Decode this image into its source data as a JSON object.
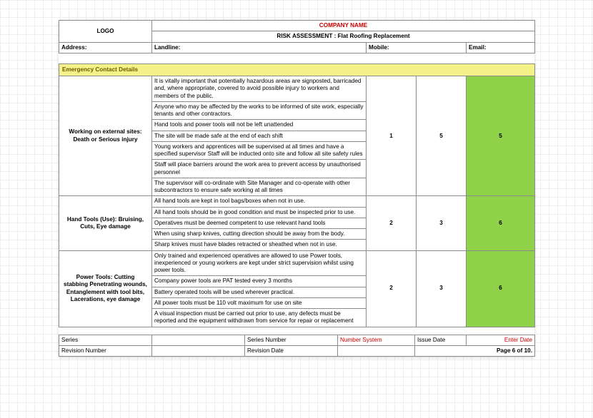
{
  "header": {
    "logo_text": "LOGO",
    "company_name": "COMPANY NAME",
    "title": "RISK ASSESSMENT : Flat Roofing Replacement",
    "address_label": "Address:",
    "landline_label": "Landline:",
    "mobile_label": "Mobile:",
    "email_label": "Email:"
  },
  "emergency_heading": "Emergency Contact Details",
  "colors": {
    "emergency_bg": "#f6f28a",
    "green_bg": "#8fd24a",
    "red_text": "#cc0000",
    "border": "#8c8c8c"
  },
  "risks": [
    {
      "hazard": "Working on external sites: Death or Serious injury",
      "controls": [
        "It is vitally important that potentially hazardous areas are signposted, barricaded and, where appropriate, covered to avoid possible injury to workers and members of the public.",
        "Anyone who may be affected by the works to be informed of site work, especially tenants and other contractors.",
        "Hand tools and power tools will not be left unattended",
        "The site will be made safe at the end of each shift",
        "Young workers and apprentices will be supervised at all times and have a specified supervisor Staff will be inducted onto site and follow all site safety rules",
        "Staff will place barriers around the work area to prevent access by unauthorised personnel",
        "The supervisor will co-ordinate with Site Manager and co-operate with other subcontractors to ensure safe working at all times"
      ],
      "scores": [
        "1",
        "5",
        "5"
      ]
    },
    {
      "hazard": "Hand Tools (Use): Bruising, Cuts, Eye damage",
      "controls": [
        "All hand tools are kept in tool bags/boxes when not in use.",
        "All hand tools should be in good condition and must be inspected prior to use.",
        "Operatives must be deemed competent to use relevant hand tools",
        "When using sharp knives, cutting direction should be away from the body.",
        "Sharp knives must have blades retracted or sheathed when not in use."
      ],
      "scores": [
        "2",
        "3",
        "6"
      ]
    },
    {
      "hazard": "Power Tools: Cutting stabbing Penetrating wounds, Entanglement with tool bits, Lacerations, eye damage",
      "controls": [
        "Only trained and experienced operatives are allowed to use Power tools, inexperienced or young workers are kept under strict supervision whilst using power tools.",
        "Company power tools are PAT tested every 3 months",
        "Battery operated tools will be used wherever practical.",
        "All power tools must be 110 volt maximum for use on site",
        "A visual inspection must be carried out prior to use, any defects must be reported and the equipment withdrawn from service for repair or replacement"
      ],
      "scores": [
        "2",
        "3",
        "6"
      ]
    }
  ],
  "footer": {
    "series_label": "Series",
    "series_number_label": "Series Number",
    "number_system_label": "Number System",
    "issue_date_label": "Issue Date",
    "enter_date_label": "Enter Date",
    "revision_number_label": "Revision Number",
    "revision_date_label": "Revision Date",
    "page_text": "Page 6 of 10."
  }
}
